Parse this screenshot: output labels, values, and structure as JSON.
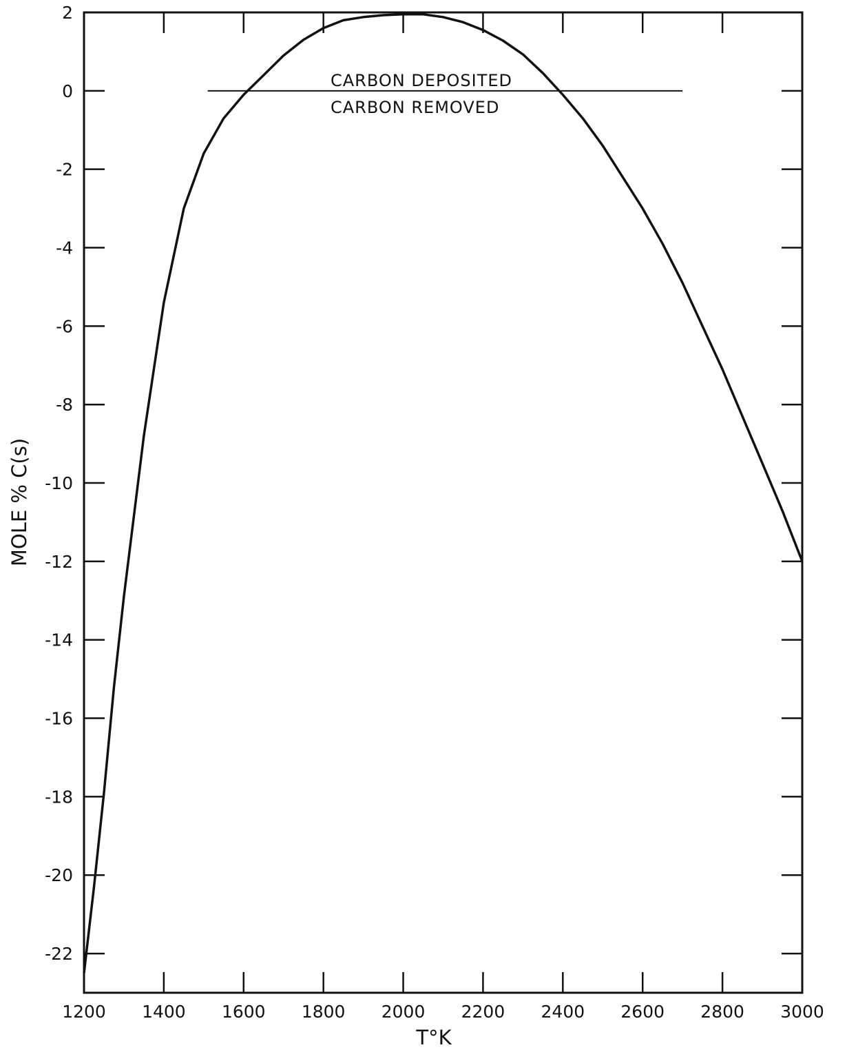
{
  "chart_data": {
    "type": "line",
    "title": "",
    "xlabel": "T°K",
    "ylabel": "MOLE % C(s)",
    "xlim": [
      1200,
      3000
    ],
    "ylim": [
      -23,
      2
    ],
    "x_ticks": [
      1200,
      1400,
      1600,
      1800,
      2000,
      2200,
      2400,
      2600,
      2800,
      3000
    ],
    "x_tick_labels": [
      "1200",
      "1400",
      "1600",
      "1800",
      "2000",
      "2200",
      "2400",
      "2600",
      "2800",
      "3000"
    ],
    "y_ticks": [
      2,
      0,
      -2,
      -4,
      -6,
      -8,
      -10,
      -12,
      -14,
      -16,
      -18,
      -20,
      -22
    ],
    "y_tick_labels": [
      "2",
      "0",
      "-2",
      "-4",
      "-6",
      "-8",
      "-10",
      "-12",
      "-14",
      "-16",
      "-18",
      "-20",
      "-22"
    ],
    "grid": false,
    "series": [
      {
        "x": [
          1200,
          1225,
          1250,
          1275,
          1300,
          1350,
          1400,
          1450,
          1500,
          1550,
          1600,
          1650,
          1700,
          1750,
          1800,
          1850,
          1900,
          1950,
          2000,
          2050,
          2100,
          2150,
          2200,
          2250,
          2300,
          2350,
          2400,
          2450,
          2500,
          2550,
          2600,
          2650,
          2700,
          2750,
          2800,
          2850,
          2900,
          2950,
          3000
        ],
        "y": [
          -22.5,
          -20.3,
          -17.9,
          -15.2,
          -12.9,
          -8.8,
          -5.4,
          -3.0,
          -1.6,
          -0.7,
          -0.1,
          0.4,
          0.9,
          1.3,
          1.6,
          1.8,
          1.88,
          1.93,
          1.95,
          1.95,
          1.88,
          1.75,
          1.55,
          1.28,
          0.93,
          0.45,
          -0.1,
          -0.7,
          -1.4,
          -2.2,
          -3.0,
          -3.9,
          -4.9,
          -6.0,
          -7.1,
          -8.3,
          -9.5,
          -10.7,
          -12.0
        ]
      }
    ],
    "annotations": [
      {
        "text": "CARBON DEPOSITED",
        "y": 0,
        "x_start": 1510,
        "x_end": 2700
      },
      {
        "text": "CARBON REMOVED"
      }
    ]
  }
}
